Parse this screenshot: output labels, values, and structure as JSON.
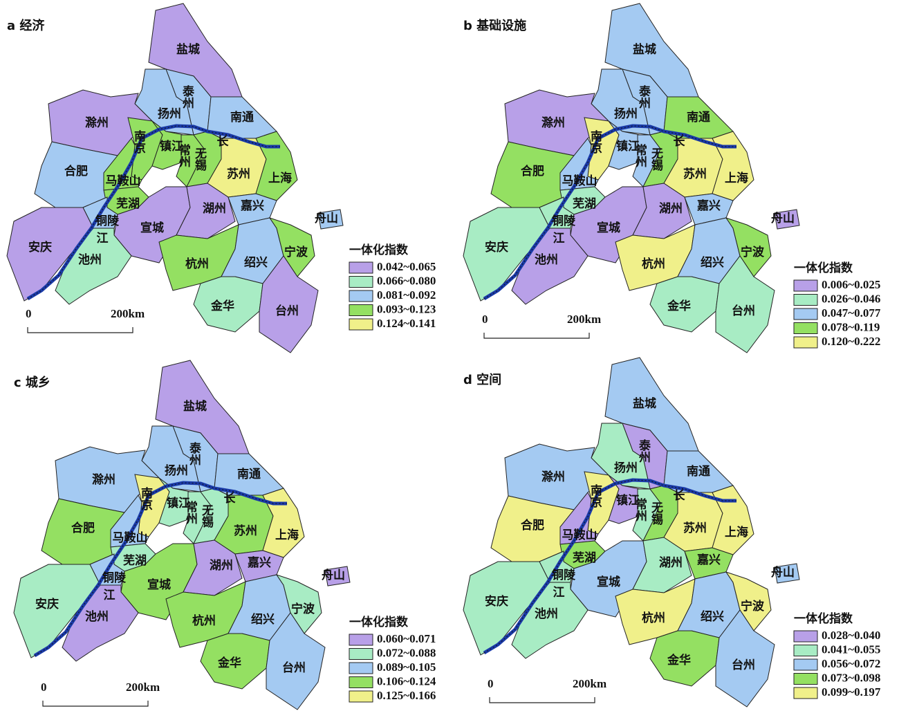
{
  "regions": [
    "盐城",
    "泰州",
    "扬州",
    "南通",
    "滁州",
    "南京",
    "镇江",
    "常州",
    "无锡",
    "苏州",
    "上海",
    "合肥",
    "马鞍山",
    "芜湖",
    "铜陵",
    "宣城",
    "湖州",
    "嘉兴",
    "安庆",
    "池州",
    "杭州",
    "绍兴",
    "宁波",
    "舟山",
    "金华",
    "台州"
  ],
  "colors": [
    "#b8a0e8",
    "#a8ecc4",
    "#a4caf2",
    "#94e062",
    "#f0f08a"
  ],
  "river_labels": [
    "长",
    "江"
  ],
  "scale": [
    "0",
    "200km"
  ],
  "panels": [
    {
      "title": "a 经济",
      "legend_title": "一体化指数",
      "legend": [
        "0.042~0.065",
        "0.066~0.080",
        "0.081~0.092",
        "0.093~0.123",
        "0.124~0.141"
      ],
      "classes": [
        0,
        2,
        2,
        2,
        0,
        3,
        3,
        3,
        3,
        4,
        3,
        2,
        3,
        3,
        2,
        0,
        0,
        2,
        0,
        1,
        3,
        2,
        3,
        2,
        1,
        0
      ]
    },
    {
      "title": "b 基础设施",
      "legend_title": "一体化指数",
      "legend": [
        "0.006~0.025",
        "0.026~0.046",
        "0.047~0.077",
        "0.078~0.119",
        "0.120~0.222"
      ],
      "classes": [
        2,
        2,
        2,
        3,
        0,
        4,
        2,
        2,
        3,
        4,
        4,
        3,
        2,
        1,
        1,
        0,
        0,
        2,
        1,
        0,
        4,
        2,
        3,
        0,
        1,
        1
      ]
    },
    {
      "title": "c 城乡",
      "legend_title": "一体化指数",
      "legend": [
        "0.060~0.071",
        "0.072~0.088",
        "0.089~0.105",
        "0.106~0.124",
        "0.125~0.166"
      ],
      "classes": [
        0,
        2,
        2,
        2,
        2,
        4,
        1,
        1,
        1,
        3,
        4,
        3,
        2,
        1,
        2,
        3,
        0,
        0,
        1,
        0,
        3,
        2,
        1,
        0,
        3,
        2
      ]
    },
    {
      "title": "d 空间",
      "legend_title": "一体化指数",
      "legend": [
        "0.028~0.040",
        "0.041~0.055",
        "0.056~0.072",
        "0.073~0.098",
        "0.099~0.197"
      ],
      "classes": [
        2,
        0,
        1,
        2,
        2,
        4,
        0,
        1,
        3,
        4,
        4,
        4,
        0,
        3,
        1,
        2,
        1,
        3,
        1,
        1,
        4,
        2,
        4,
        2,
        3,
        2
      ]
    }
  ]
}
